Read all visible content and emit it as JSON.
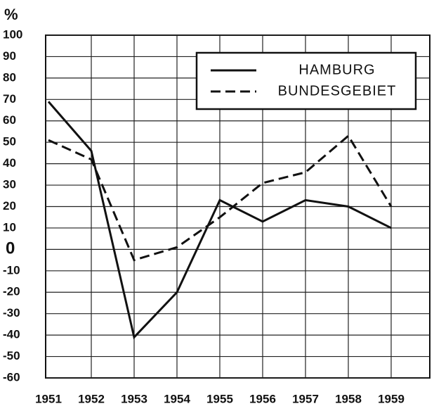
{
  "chart_data": {
    "type": "line",
    "y_label": "%",
    "categories": [
      "1951",
      "1952",
      "1953",
      "1954",
      "1955",
      "1956",
      "1957",
      "1958",
      "1959"
    ],
    "series": [
      {
        "name": "HAMBURG",
        "color": "#111111",
        "dash": "solid",
        "values": [
          69,
          46,
          -41,
          -20,
          23,
          13,
          23,
          20,
          10
        ]
      },
      {
        "name": "BUNDESGEBIET",
        "color": "#111111",
        "dash": "dashed",
        "values": [
          51,
          42,
          -5,
          1,
          15,
          31,
          36,
          53,
          20
        ]
      }
    ],
    "ylim": [
      -60,
      100
    ],
    "yticks": [
      -60,
      -50,
      -40,
      -30,
      -20,
      -10,
      0,
      10,
      20,
      30,
      40,
      50,
      60,
      70,
      80,
      90,
      100
    ],
    "grid": true,
    "legend": "upper right"
  }
}
